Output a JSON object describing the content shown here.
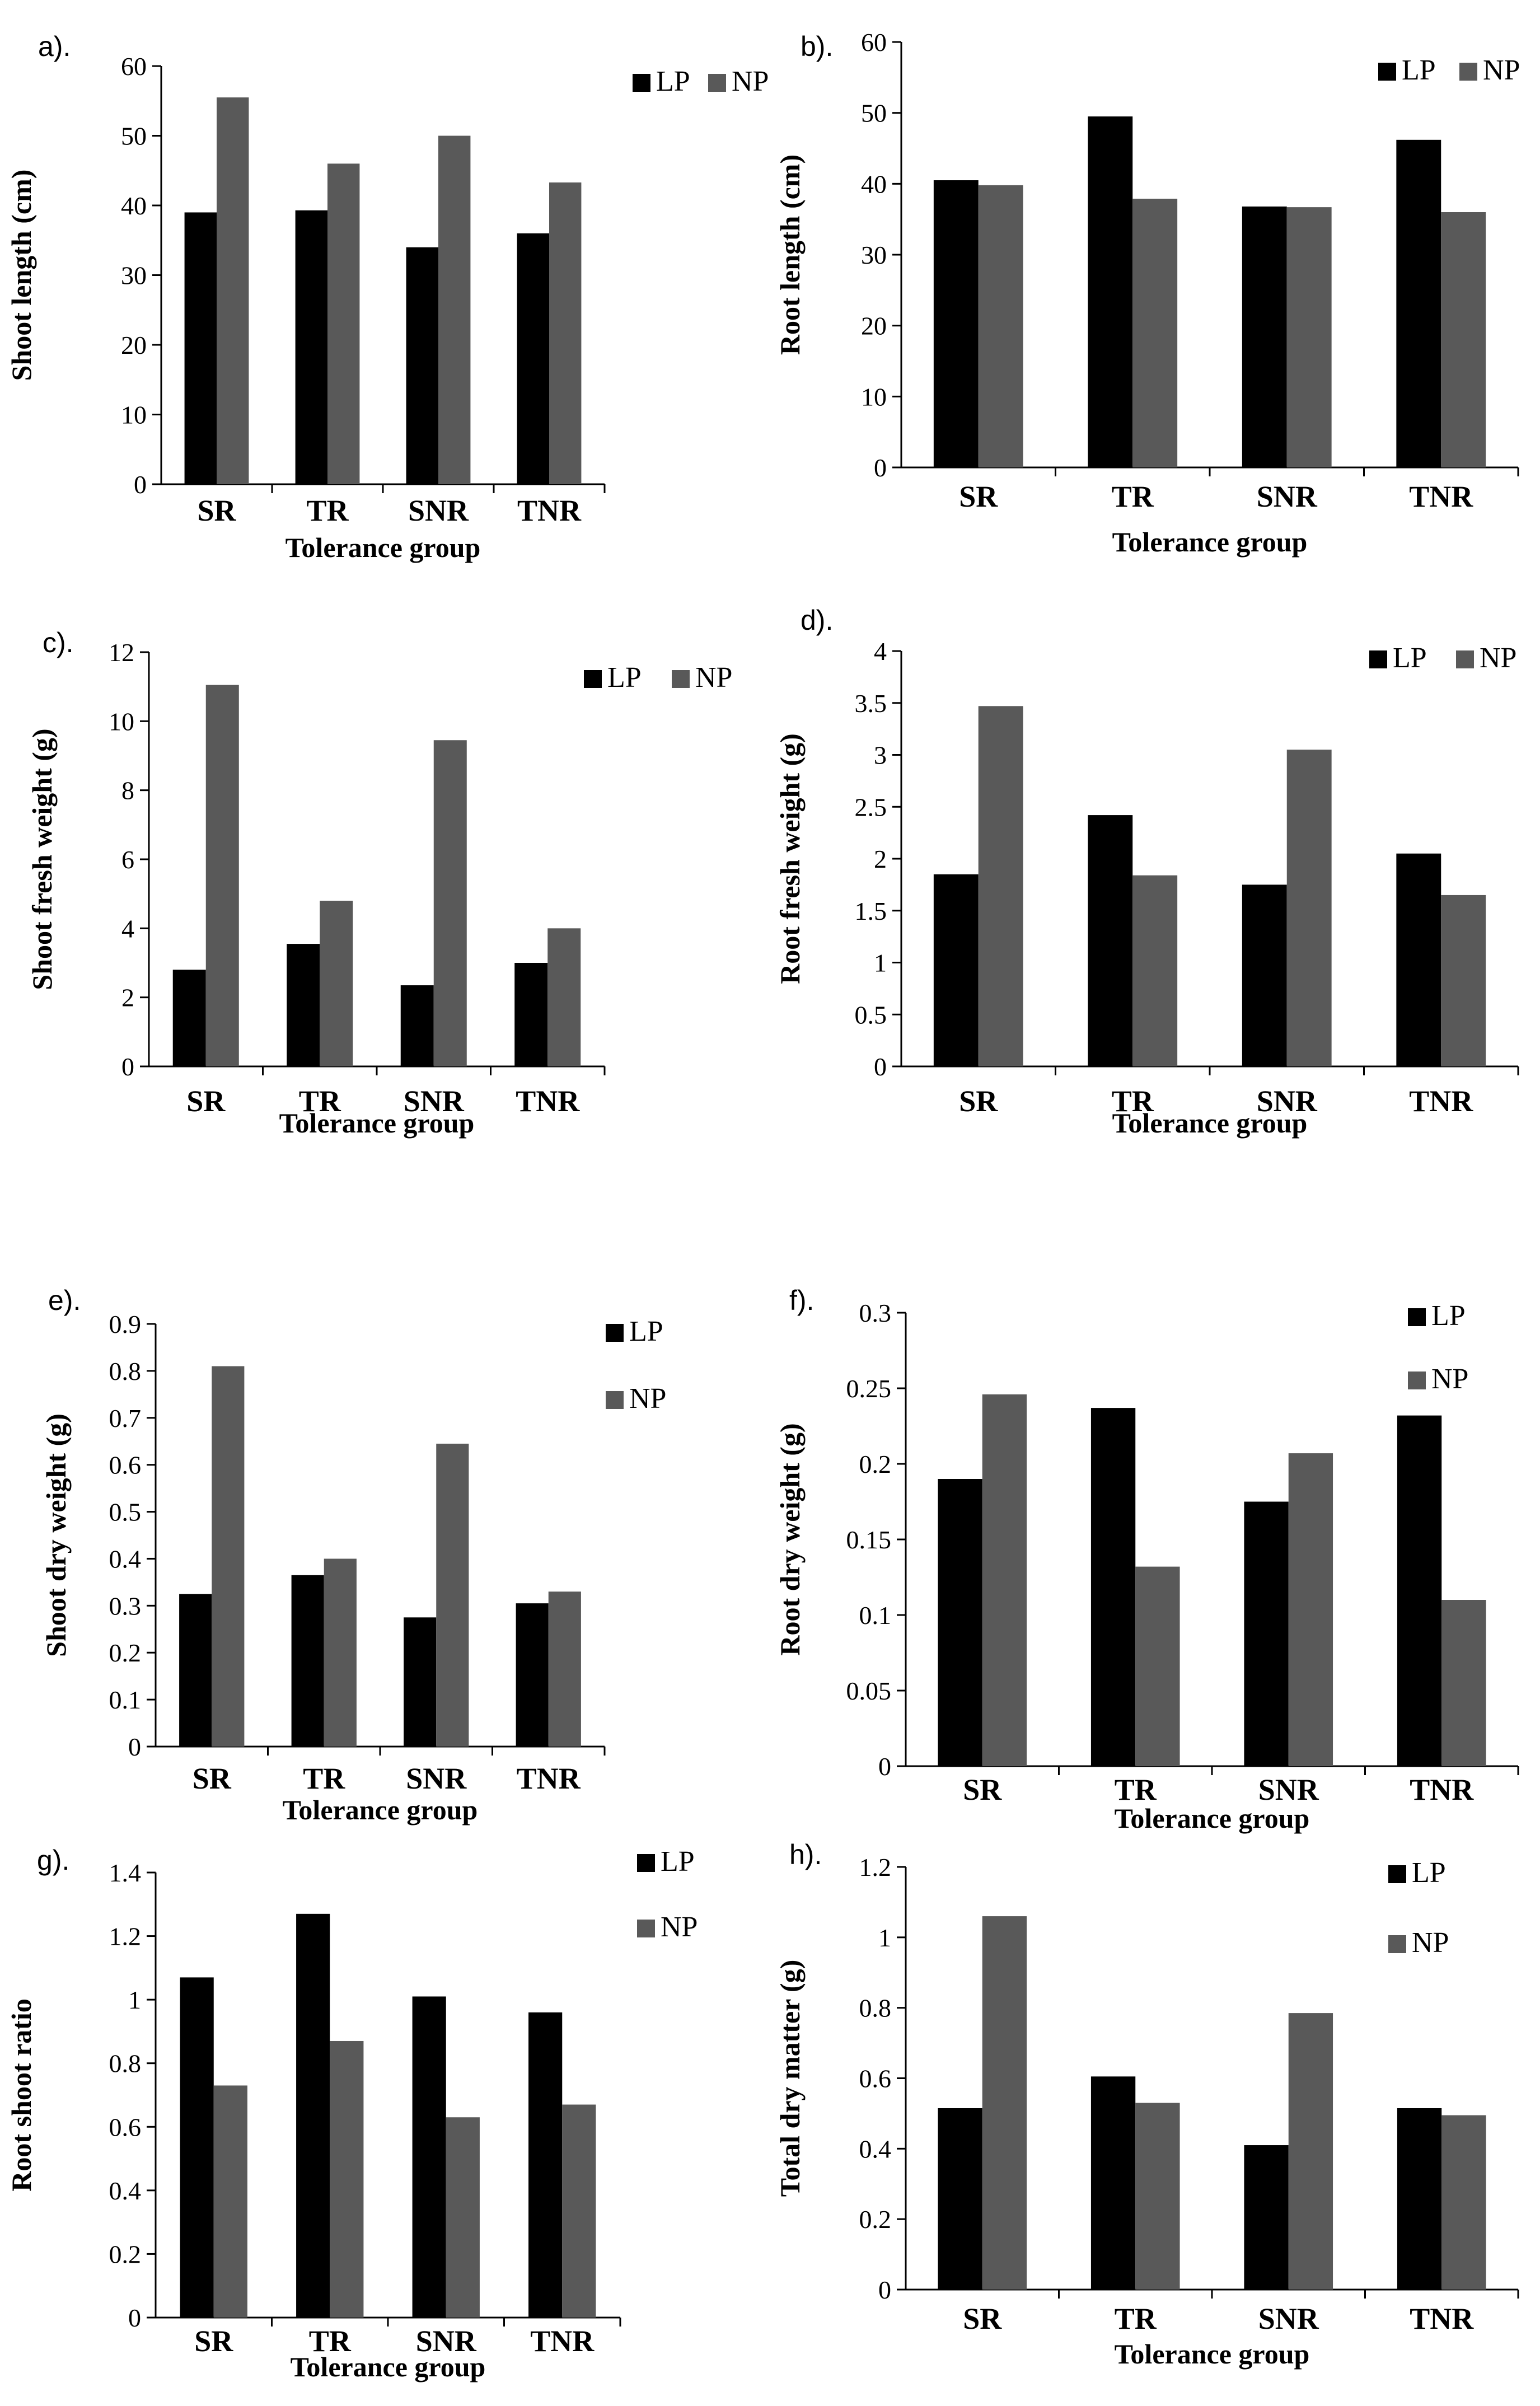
{
  "colors": {
    "LP": "#000000",
    "NP": "#595959",
    "axis": "#000000"
  },
  "chart_data": [
    {
      "panel": "a).",
      "type": "bar",
      "categories": [
        "SR",
        "TR",
        "SNR",
        "TNR"
      ],
      "series": [
        {
          "name": "LP",
          "values": [
            39,
            39.3,
            34,
            36
          ]
        },
        {
          "name": "NP",
          "values": [
            55.5,
            46,
            50,
            43.3
          ]
        }
      ],
      "ylim": [
        0,
        60
      ],
      "yticks": [
        0,
        10,
        20,
        30,
        40,
        50,
        60
      ],
      "tick_labels": [
        "0",
        "10",
        "20",
        "30",
        "40",
        "50",
        "60"
      ],
      "ylabel": "Shoot length (cm)",
      "xlabel": "Tolerance group",
      "legend": "top-right-inline"
    },
    {
      "panel": "b).",
      "type": "bar",
      "categories": [
        "SR",
        "TR",
        "SNR",
        "TNR"
      ],
      "series": [
        {
          "name": "LP",
          "values": [
            40.5,
            49.5,
            36.8,
            46.2
          ]
        },
        {
          "name": "NP",
          "values": [
            39.8,
            37.9,
            36.7,
            36
          ]
        }
      ],
      "ylim": [
        0,
        60
      ],
      "yticks": [
        0,
        10,
        20,
        30,
        40,
        50,
        60
      ],
      "tick_labels": [
        "0",
        "10",
        "20",
        "30",
        "40",
        "50",
        "60"
      ],
      "ylabel": "Root length (cm)",
      "xlabel": "Tolerance group",
      "legend": "top-right-inline"
    },
    {
      "panel": "c).",
      "type": "bar",
      "categories": [
        "SR",
        "TR",
        "SNR",
        "TNR"
      ],
      "series": [
        {
          "name": "LP",
          "values": [
            2.8,
            3.55,
            2.35,
            3.0
          ]
        },
        {
          "name": "NP",
          "values": [
            11.05,
            4.8,
            9.45,
            4.0
          ]
        }
      ],
      "ylim": [
        0,
        12
      ],
      "yticks": [
        0,
        2,
        4,
        6,
        8,
        10,
        12
      ],
      "tick_labels": [
        "0",
        "2",
        "4",
        "6",
        "8",
        "10",
        "12"
      ],
      "ylabel": "Shoot fresh weight (g)",
      "xlabel": "Tolerance group",
      "legend": "top-right-inline"
    },
    {
      "panel": "d).",
      "type": "bar",
      "categories": [
        "SR",
        "TR",
        "SNR",
        "TNR"
      ],
      "series": [
        {
          "name": "LP",
          "values": [
            1.85,
            2.42,
            1.75,
            2.05
          ]
        },
        {
          "name": "NP",
          "values": [
            3.47,
            1.84,
            3.05,
            1.65
          ]
        }
      ],
      "ylim": [
        0,
        4
      ],
      "yticks": [
        0,
        0.5,
        1,
        1.5,
        2,
        2.5,
        3,
        3.5,
        4
      ],
      "tick_labels": [
        "0",
        "0.5",
        "1",
        "1.5",
        "2",
        "2.5",
        "3",
        "3.5",
        "4"
      ],
      "ylabel": "Root fresh weight (g)",
      "xlabel": "Tolerance group",
      "legend": "top-right-inline"
    },
    {
      "panel": "e).",
      "type": "bar",
      "categories": [
        "SR",
        "TR",
        "SNR",
        "TNR"
      ],
      "series": [
        {
          "name": "LP",
          "values": [
            0.325,
            0.365,
            0.275,
            0.305
          ]
        },
        {
          "name": "NP",
          "values": [
            0.81,
            0.4,
            0.645,
            0.33
          ]
        }
      ],
      "ylim": [
        0,
        0.9
      ],
      "yticks": [
        0,
        0.1,
        0.2,
        0.3,
        0.4,
        0.5,
        0.6,
        0.7,
        0.8,
        0.9
      ],
      "tick_labels": [
        "0",
        "0.1",
        "0.2",
        "0.3",
        "0.4",
        "0.5",
        "0.6",
        "0.7",
        "0.8",
        "0.9"
      ],
      "ylabel": "Shoot dry weight (g)",
      "xlabel": "Tolerance group",
      "legend": "top-right-stacked"
    },
    {
      "panel": "f).",
      "type": "bar",
      "categories": [
        "SR",
        "TR",
        "SNR",
        "TNR"
      ],
      "series": [
        {
          "name": "LP",
          "values": [
            0.19,
            0.237,
            0.175,
            0.232
          ]
        },
        {
          "name": "NP",
          "values": [
            0.246,
            0.132,
            0.207,
            0.11
          ]
        }
      ],
      "ylim": [
        0,
        0.3
      ],
      "yticks": [
        0,
        0.05,
        0.1,
        0.15,
        0.2,
        0.25,
        0.3
      ],
      "tick_labels": [
        "0",
        "0.05",
        "0.1",
        "0.15",
        "0.2",
        "0.25",
        "0.3"
      ],
      "ylabel": "Root dry weight (g)",
      "xlabel": "Tolerance group",
      "legend": "top-right-stacked"
    },
    {
      "panel": "g).",
      "type": "bar",
      "categories": [
        "SR",
        "TR",
        "SNR",
        "TNR"
      ],
      "series": [
        {
          "name": "LP",
          "values": [
            1.07,
            1.27,
            1.01,
            0.96
          ]
        },
        {
          "name": "NP",
          "values": [
            0.73,
            0.87,
            0.63,
            0.67
          ]
        }
      ],
      "ylim": [
        0,
        1.4
      ],
      "yticks": [
        0,
        0.2,
        0.4,
        0.6,
        0.8,
        1,
        1.2,
        1.4
      ],
      "tick_labels": [
        "0",
        "0.2",
        "0.4",
        "0.6",
        "0.8",
        "1",
        "1.2",
        "1.4"
      ],
      "ylabel": "Root shoot ratio",
      "xlabel": "Tolerance group",
      "legend": "top-right-stacked"
    },
    {
      "panel": "h).",
      "type": "bar",
      "categories": [
        "SR",
        "TR",
        "SNR",
        "TNR"
      ],
      "series": [
        {
          "name": "LP",
          "values": [
            0.515,
            0.605,
            0.41,
            0.515
          ]
        },
        {
          "name": "NP",
          "values": [
            1.06,
            0.53,
            0.785,
            0.495
          ]
        }
      ],
      "ylim": [
        0,
        1.2
      ],
      "yticks": [
        0,
        0.2,
        0.4,
        0.6,
        0.8,
        1,
        1.2
      ],
      "tick_labels": [
        "0",
        "0.2",
        "0.4",
        "0.6",
        "0.8",
        "1",
        "1.2"
      ],
      "ylabel": "Total dry matter (g)",
      "xlabel": "Tolerance group",
      "legend": "top-right-stacked"
    }
  ]
}
